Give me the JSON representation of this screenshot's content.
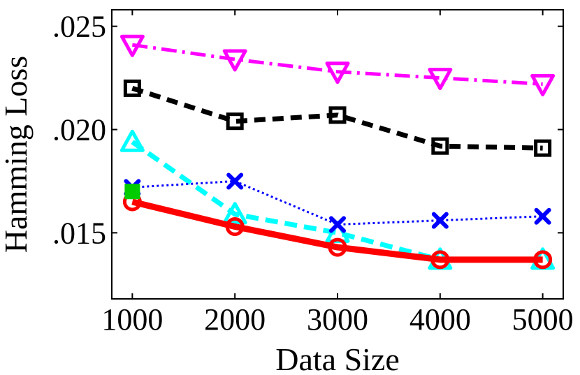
{
  "chart_data": {
    "type": "line",
    "xlabel": "Data Size",
    "ylabel": "Hamming Loss",
    "x": [
      1000,
      2000,
      3000,
      4000,
      5000
    ],
    "xlim": [
      800,
      5200
    ],
    "ylim": [
      0.0118,
      0.0258
    ],
    "xticks": [
      1000,
      2000,
      3000,
      4000,
      5000
    ],
    "xtick_labels": [
      "1000",
      "2000",
      "3000",
      "4000",
      "5000"
    ],
    "yticks": [
      0.015,
      0.02,
      0.025
    ],
    "ytick_labels": [
      ".015",
      ".020",
      ".025"
    ],
    "grid": false,
    "legend": "none",
    "series": [
      {
        "values": [
          0.0241,
          0.0234,
          0.0228,
          0.0225,
          0.0222
        ],
        "color": "#ff00ff",
        "dash": "22,8,4,8",
        "marker": "triangle-down",
        "width": 5
      },
      {
        "values": [
          0.022,
          0.0204,
          0.0207,
          0.0192,
          0.0191
        ],
        "color": "#000000",
        "dash": "16,10",
        "marker": "square",
        "width": 7
      },
      {
        "values": [
          0.0194,
          0.0159,
          0.015,
          0.0137,
          0.0137
        ],
        "color": "#00ffff",
        "dash": "18,10",
        "marker": "triangle-up",
        "width": 7
      },
      {
        "values": [
          0.0172,
          0.0175,
          0.0154,
          0.0156,
          0.0158
        ],
        "color": "#0000ff",
        "dash": "3,4",
        "marker": "x",
        "width": 3
      },
      {
        "values": [
          0.0165,
          0.0153,
          0.0143,
          0.0137,
          0.0137
        ],
        "color": "#ff0000",
        "dash": "",
        "marker": "circle",
        "width": 9
      },
      {
        "values": [
          0.017
        ],
        "x": [
          1000
        ],
        "color": "#00cc00",
        "dash": "",
        "marker": "filled-square",
        "width": 0
      }
    ]
  }
}
